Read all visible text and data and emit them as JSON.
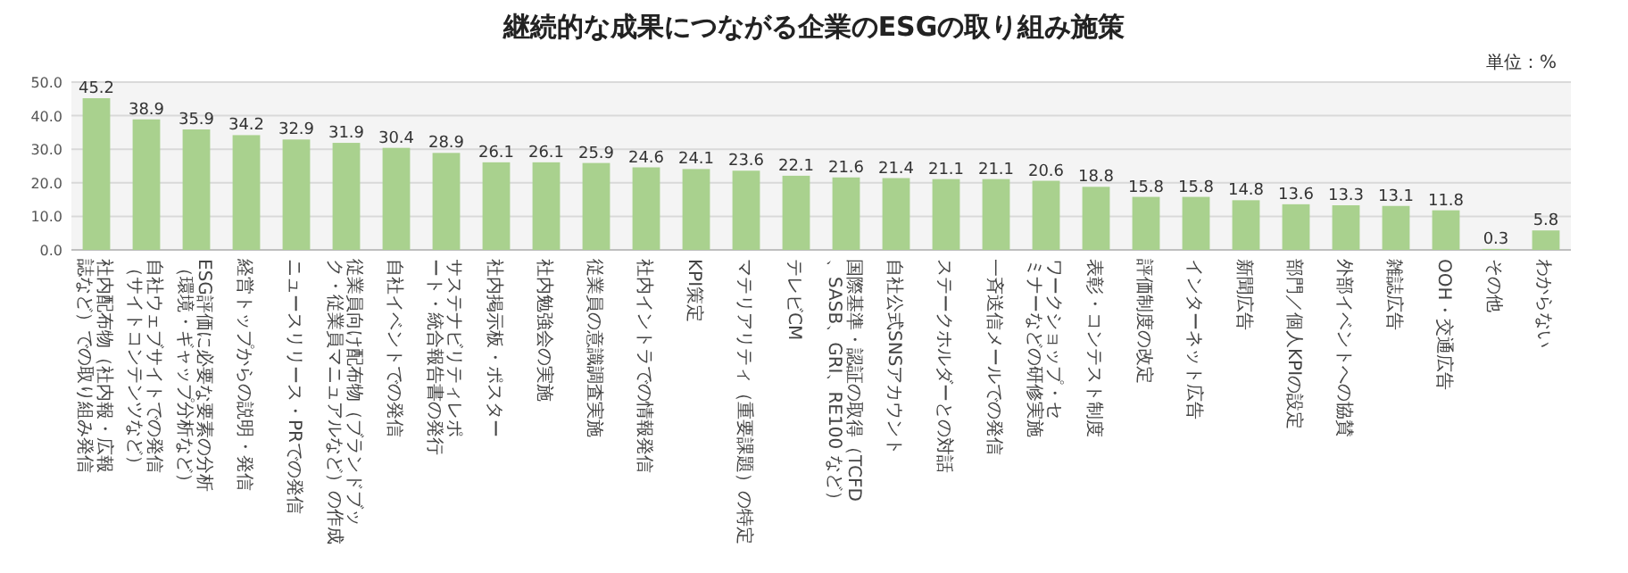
{
  "chart_data": {
    "type": "bar",
    "title": "継続的な成果につながる企業のESGの取り組み施策",
    "annotations": [
      "単位：%"
    ],
    "categories": [
      "社内配布物（社内報・広報誌など）での取り組み発信",
      "自社ウェブサイトでの発信（サイトコンテンツなど）",
      "ESG評価に必要な要素の分析（環境・ギャップ分析など）",
      "経営トップからの説明・発信",
      "ニュースリリース・PRでの発信",
      "従業員向け配布物（ブランドブック・従業員マニュアルなど）の作成",
      "自社イベントでの発信",
      "サステナビリティレポート・統合報告書の発行",
      "社内掲示板・ポスター",
      "社内勉強会の実施",
      "従業員の意識調査実施",
      "社内イントラでの情報発信",
      "KPI策定",
      "マテリアリティ（重要課題）の特定",
      "テレビCM",
      "国際基準・認証の取得（TCFD、SASB、GRI、RE100 など）",
      "自社公式SNSアカウント",
      "ステークホルダーとの対話",
      "一斉送信メールでの発信",
      "ワークショップ・セミナーなどの研修実施",
      "表彰・コンテスト制度",
      "評価制度の改定",
      "インターネット広告",
      "新聞広告",
      "部門／個人KPIの設定",
      "外部イベントへの協賛",
      "雑誌広告",
      "OOH・交通広告",
      "その他",
      "わからない"
    ],
    "values": [
      45.2,
      38.9,
      35.9,
      34.2,
      32.9,
      31.9,
      30.4,
      28.9,
      26.1,
      26.1,
      25.9,
      24.6,
      24.1,
      23.6,
      22.1,
      21.6,
      21.4,
      21.1,
      21.1,
      20.6,
      18.8,
      15.8,
      15.8,
      14.8,
      13.6,
      13.3,
      13.1,
      11.8,
      0.3,
      5.8
    ],
    "color": "#a9d18e",
    "ylim": [
      0,
      50
    ],
    "yticks": [
      {
        "value": 0,
        "label": "0.0"
      },
      {
        "value": 10,
        "label": "10.0"
      },
      {
        "value": 20,
        "label": "20.0"
      },
      {
        "value": 30,
        "label": "30.0"
      },
      {
        "value": 40,
        "label": "40.0"
      },
      {
        "value": 50,
        "label": "50.0"
      }
    ],
    "grid": "y",
    "data_labels": true
  }
}
